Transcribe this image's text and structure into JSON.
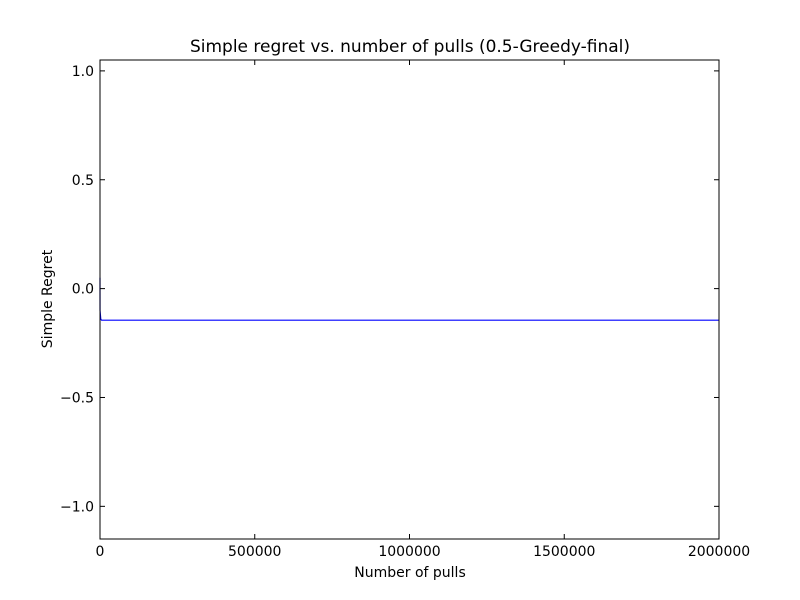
{
  "chart_data": {
    "type": "line",
    "title": "Simple regret vs. number of pulls (0.5-Greedy-final)",
    "xlabel": "Number of pulls",
    "ylabel": "Simple Regret",
    "xlim": [
      0,
      2000000
    ],
    "ylim": [
      -1.15,
      1.05
    ],
    "xticks": [
      0,
      500000,
      1000000,
      1500000,
      2000000
    ],
    "xtick_labels": [
      "0",
      "500000",
      "1000000",
      "1500000",
      "2000000"
    ],
    "yticks": [
      1.0,
      0.5,
      0.0,
      -0.5,
      -1.0
    ],
    "ytick_labels": [
      "1.0",
      "0.5",
      "0.0",
      "−0.5",
      "−1.0"
    ],
    "grid": false,
    "legend": "none",
    "series": [
      {
        "color": "#0000ff",
        "x": [
          0,
          100,
          2500,
          5000,
          2000000
        ],
        "y": [
          0.05,
          -0.1,
          -0.14,
          -0.145,
          -0.145
        ]
      }
    ]
  }
}
